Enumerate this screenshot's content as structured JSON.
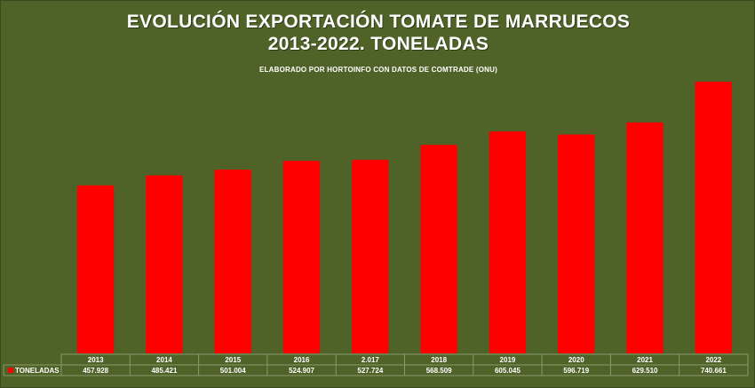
{
  "chart_data": {
    "type": "bar",
    "title": "EVOLUCIÓN EXPORTACIÓN TOMATE DE MARRUECOS",
    "title_line2": "2013-2022. TONELADAS",
    "subtitle": "ELABORADO POR HORTOINFO CON DATOS DE  COMTRADE (ONU)",
    "categories": [
      "2013",
      "2014",
      "2015",
      "2016",
      "2.017",
      "2018",
      "2019",
      "2020",
      "2021",
      "2022"
    ],
    "series": [
      {
        "name": "TONELADAS",
        "values": [
          457928,
          485421,
          501004,
          524907,
          527724,
          568509,
          605045,
          596719,
          629510,
          740661
        ],
        "labels": [
          "457.928",
          "485.421",
          "501.004",
          "524.907",
          "527.724",
          "568.509",
          "605.045",
          "596.719",
          "629.510",
          "740.661"
        ],
        "color": "#ff0000"
      }
    ],
    "ylim": [
      0,
      760000
    ],
    "grid": false,
    "legend": "data-table-left",
    "background": "#4f6228",
    "text_color": "#ffffff"
  }
}
